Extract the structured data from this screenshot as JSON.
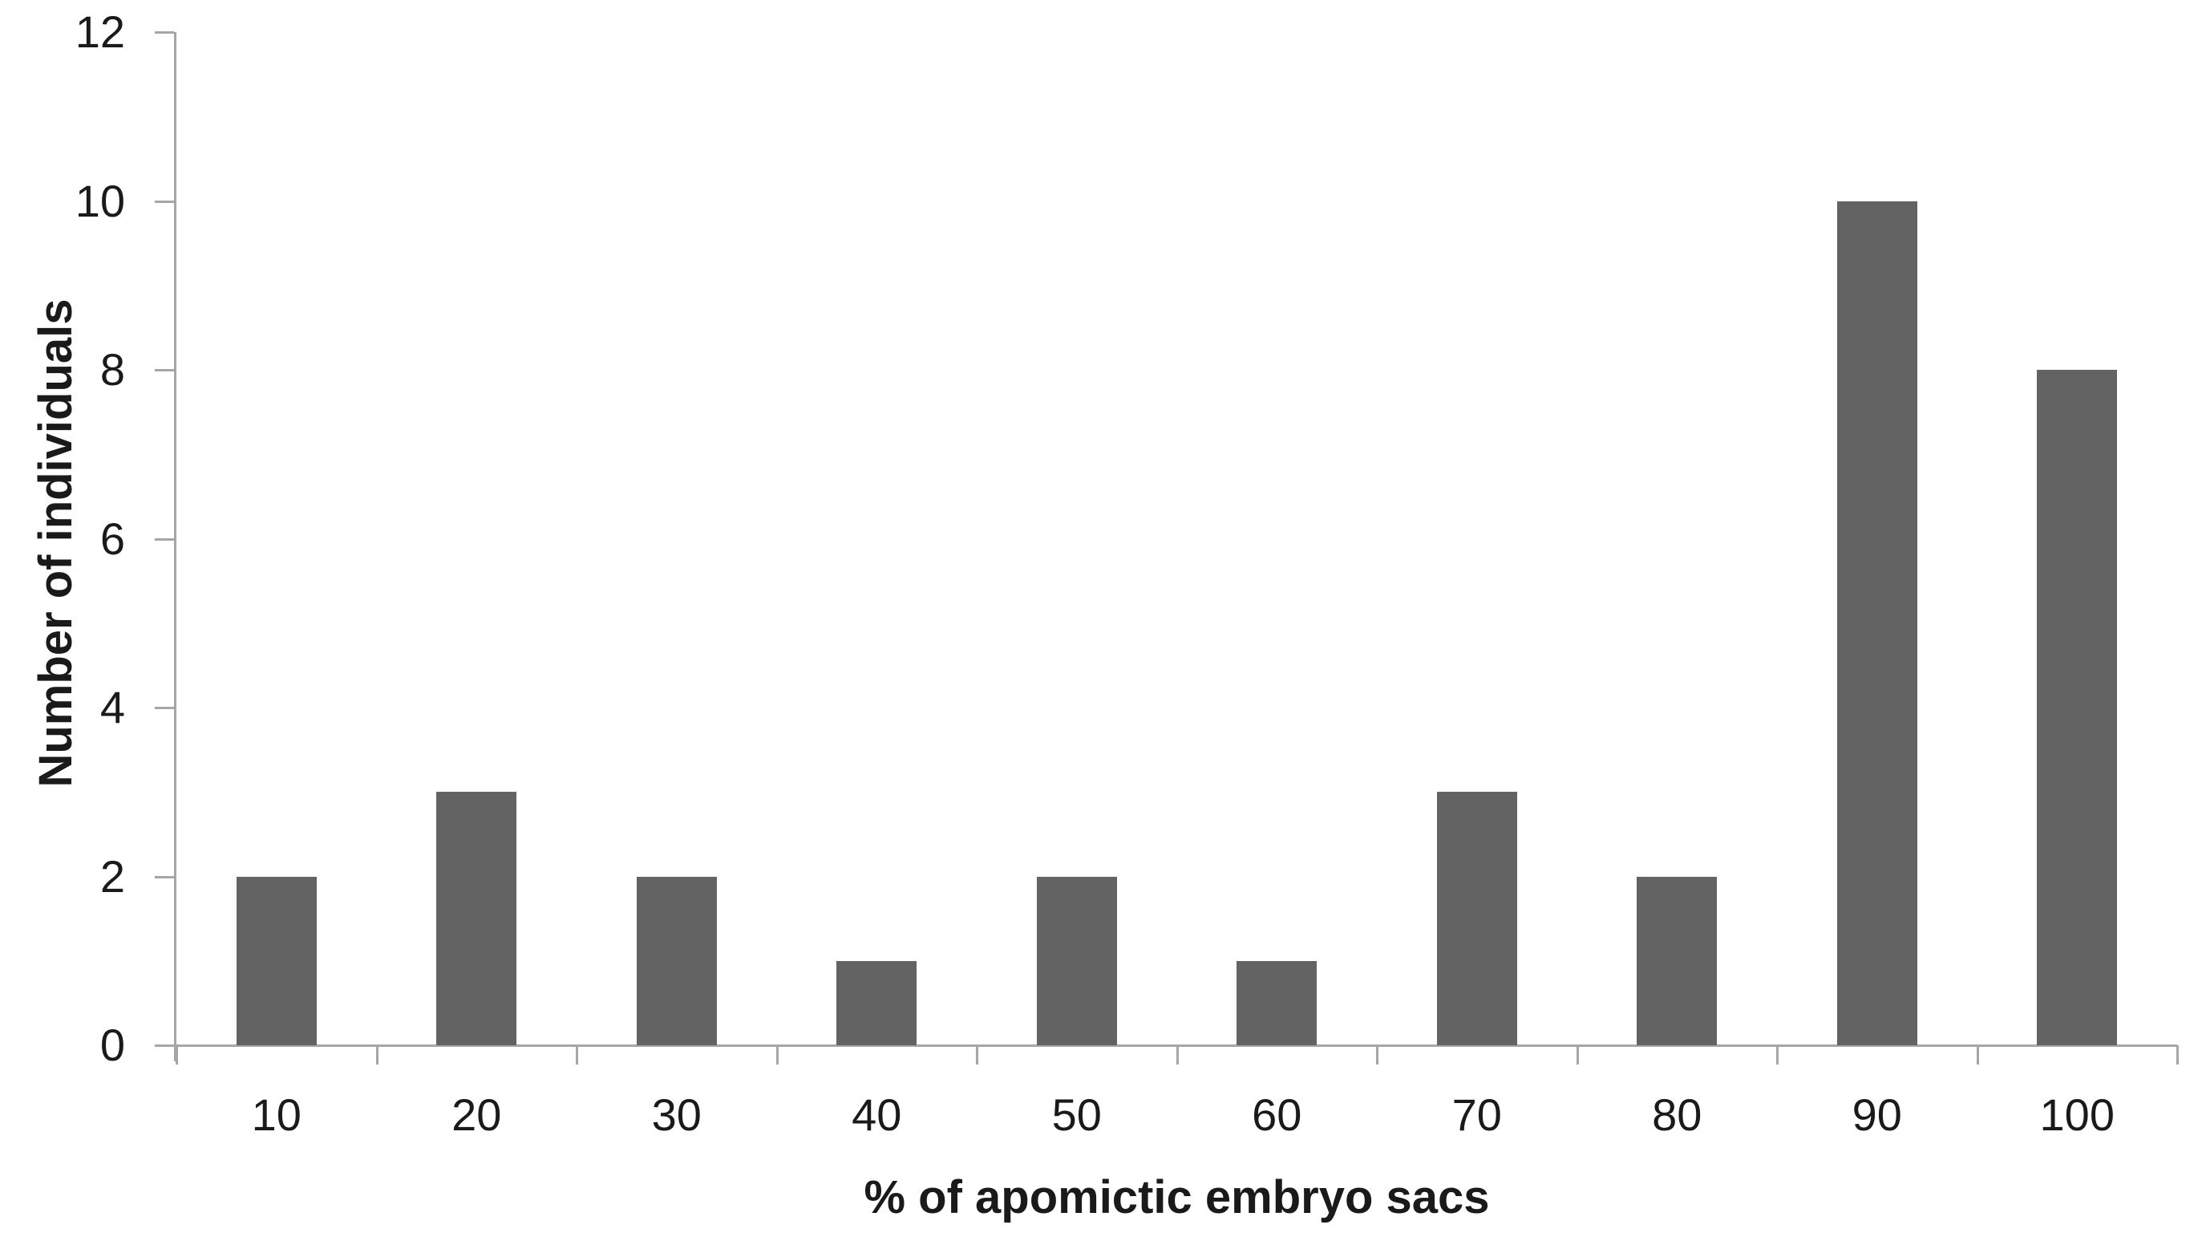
{
  "chart_data": {
    "type": "bar",
    "categories": [
      "10",
      "20",
      "30",
      "40",
      "50",
      "60",
      "70",
      "80",
      "90",
      "100"
    ],
    "values": [
      2,
      3,
      2,
      1,
      2,
      1,
      3,
      2,
      10,
      8
    ],
    "title": "",
    "xlabel": "% of apomictic embryo sacs",
    "ylabel": "Number of individuals",
    "ylim": [
      0,
      12
    ],
    "yticks": [
      0,
      2,
      4,
      6,
      8,
      10,
      12
    ],
    "grid": false,
    "legend": null,
    "bar_color": "#636363",
    "axis_color": "#a6a6a6",
    "text_color": "#1a1a1a"
  }
}
